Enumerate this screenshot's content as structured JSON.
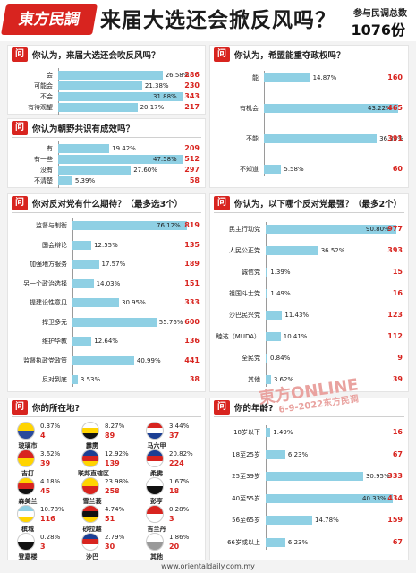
{
  "header": {
    "logo": "東方民調",
    "title": "来届大选还会掀反风吗？",
    "total_label": "参与民调总数",
    "total_value": "1076份"
  },
  "question_badge": "问",
  "chart_data": [
    {
      "id": "q1",
      "type": "bar",
      "title": "你认为，来届大选还会吹反风吗？",
      "categories": [
        "会",
        "可能会",
        "不会",
        "有待观望"
      ],
      "values": [
        26.58,
        21.38,
        31.88,
        20.17
      ],
      "value_labels": [
        "26.58%",
        "21.38%",
        "31.88%",
        "20.17%"
      ],
      "counts": [
        286,
        230,
        343,
        217
      ]
    },
    {
      "id": "q2",
      "type": "bar",
      "title": "你认为朝野共识有成效吗？",
      "categories": [
        "有",
        "有一些",
        "没有",
        "不清楚"
      ],
      "values": [
        19.42,
        47.58,
        27.6,
        5.39
      ],
      "value_labels": [
        "19.42%",
        "47.58%",
        "27.60%",
        "5.39%"
      ],
      "counts": [
        209,
        512,
        297,
        58
      ]
    },
    {
      "id": "q3",
      "type": "bar",
      "title": "你认为，希盟能重夺政权吗？",
      "categories": [
        "能",
        "有机会",
        "不能",
        "不知道"
      ],
      "values": [
        14.87,
        43.22,
        36.34,
        5.58
      ],
      "value_labels": [
        "14.87%",
        "43.22%",
        "36.34%",
        "5.58%"
      ],
      "counts": [
        160,
        465,
        391,
        60
      ]
    },
    {
      "id": "q4",
      "type": "bar",
      "title": "你对反对党有什么期待？（最多选3个）",
      "categories": [
        "监督与制衡",
        "国会辩论",
        "加强地方服务",
        "另一个政治选择",
        "提建设性意见",
        "捍卫多元",
        "维护华教",
        "监督执政党政策",
        "反对到底"
      ],
      "values": [
        76.12,
        12.55,
        17.57,
        14.03,
        30.95,
        55.76,
        12.64,
        40.99,
        3.53
      ],
      "value_labels": [
        "76.12%",
        "12.55%",
        "17.57%",
        "14.03%",
        "30.95%",
        "55.76%",
        "12.64%",
        "40.99%",
        "3.53%"
      ],
      "counts": [
        819,
        135,
        189,
        151,
        333,
        600,
        136,
        441,
        38
      ]
    },
    {
      "id": "q5",
      "type": "bar",
      "title": "你认为，以下哪个反对党最强？（最多2个）",
      "categories": [
        "民主行动党",
        "人民公正党",
        "诚信党",
        "祖国斗士党",
        "沙巴民兴党",
        "睦达（MUDA）",
        "全民党",
        "其他"
      ],
      "values": [
        90.8,
        36.52,
        1.39,
        1.49,
        11.43,
        10.41,
        0.84,
        3.62
      ],
      "value_labels": [
        "90.80%",
        "36.52%",
        "1.39%",
        "1.49%",
        "11.43%",
        "10.41%",
        "0.84%",
        "3.62%"
      ],
      "counts": [
        977,
        393,
        15,
        16,
        123,
        112,
        9,
        39
      ]
    },
    {
      "id": "q6",
      "type": "table",
      "title": "你的所在地?",
      "states": [
        {
          "name": "玻璃市",
          "pct": "0.37%",
          "count": 4,
          "flag": [
            "#ffd400",
            "#2a4a9c"
          ]
        },
        {
          "name": "霹雳",
          "pct": "8.27%",
          "count": 89,
          "flag": [
            "#ffffff",
            "#ffd400",
            "#111111"
          ]
        },
        {
          "name": "马六甲",
          "pct": "3.44%",
          "count": 37,
          "flag": [
            "#d8241f",
            "#ffffff",
            "#1c3f94"
          ]
        },
        {
          "name": "吉打",
          "pct": "3.62%",
          "count": 39,
          "flag": [
            "#d8241f",
            "#ffd400"
          ]
        },
        {
          "name": "联邦直辖区",
          "pct": "12.92%",
          "count": 139,
          "flag": [
            "#1c3f94",
            "#d8241f",
            "#ffd400"
          ]
        },
        {
          "name": "柔佛",
          "pct": "20.82%",
          "count": 224,
          "flag": [
            "#1c3f94",
            "#d8241f",
            "#ffffff"
          ]
        },
        {
          "name": "森美兰",
          "pct": "4.18%",
          "count": 45,
          "flag": [
            "#ffd400",
            "#d8241f",
            "#111111"
          ]
        },
        {
          "name": "雪兰莪",
          "pct": "23.98%",
          "count": 258,
          "flag": [
            "#ffd400",
            "#d8241f"
          ]
        },
        {
          "name": "彭亨",
          "pct": "1.67%",
          "count": 18,
          "flag": [
            "#ffffff",
            "#111111"
          ]
        },
        {
          "name": "槟城",
          "pct": "10.78%",
          "count": 116,
          "flag": [
            "#8fd0e4",
            "#ffffff",
            "#ffd400"
          ]
        },
        {
          "name": "砂拉越",
          "pct": "4.74%",
          "count": 51,
          "flag": [
            "#d8241f",
            "#111111",
            "#ffd400"
          ]
        },
        {
          "name": "吉兰丹",
          "pct": "0.28%",
          "count": 3,
          "flag": [
            "#d8241f",
            "#ffffff"
          ]
        },
        {
          "name": "登嘉楼",
          "pct": "0.28%",
          "count": 3,
          "flag": [
            "#ffffff",
            "#111111"
          ]
        },
        {
          "name": "沙巴",
          "pct": "2.79%",
          "count": 30,
          "flag": [
            "#1c3f94",
            "#d8241f",
            "#ffffff"
          ]
        },
        {
          "name": "其他",
          "pct": "1.86%",
          "count": 20,
          "flag": [
            "#ffffff",
            "#999999"
          ]
        }
      ]
    },
    {
      "id": "q7",
      "type": "bar",
      "title": "你的年龄?",
      "categories": [
        "18岁以下",
        "18至25岁",
        "25至39岁",
        "40至55岁",
        "56至65岁",
        "66岁或以上"
      ],
      "values": [
        1.49,
        6.23,
        30.95,
        40.33,
        14.78,
        6.23
      ],
      "value_labels": [
        "1.49%",
        "6.23%",
        "30.95%",
        "40.33%",
        "14.78%",
        "6.23%"
      ],
      "counts": [
        16,
        67,
        333,
        434,
        159,
        67
      ]
    }
  ],
  "watermark": {
    "brand": "東方ONLINE",
    "date": "6-9-2022东方民调"
  },
  "footer": {
    "url": "www.orientaldaily.com.my"
  },
  "colors": {
    "accent": "#d8241f",
    "bar": "#8fd0e4"
  }
}
